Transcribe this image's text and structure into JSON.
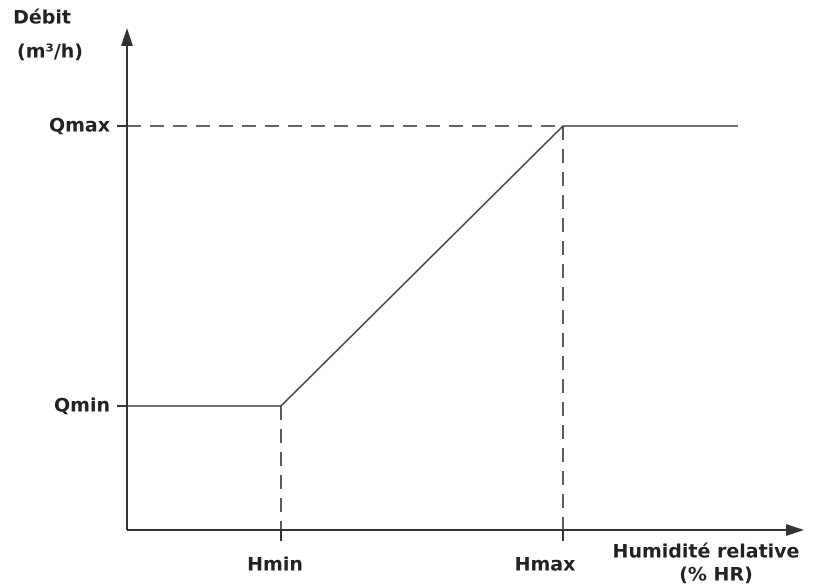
{
  "y_axis": {
    "label": "Débit",
    "unit": "(m³/h)"
  },
  "x_axis": {
    "label": "Humidité relative",
    "unit": "(% HR)"
  },
  "levels": {
    "low": "Qmin",
    "high": "Qmax"
  },
  "thresholds": {
    "low": "Hmin",
    "high": "Hmax"
  }
}
